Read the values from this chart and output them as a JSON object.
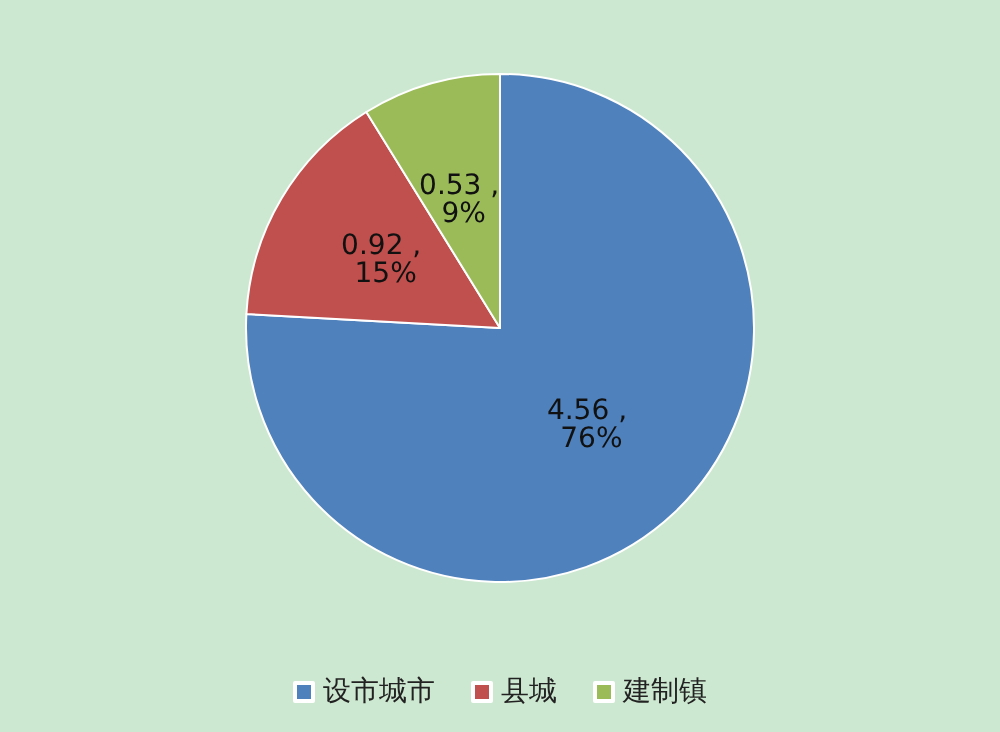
{
  "chart_data": {
    "type": "pie",
    "categories": [
      "设市城市",
      "县城",
      "建制镇"
    ],
    "values": [
      4.56,
      0.92,
      0.53
    ],
    "colors": [
      "#4f81bd",
      "#c0504d",
      "#9bbb59"
    ],
    "value_labels": [
      "4.56 , 76%",
      "0.92 , 15%",
      "0.53 , 9%"
    ],
    "legend": "bottom"
  }
}
